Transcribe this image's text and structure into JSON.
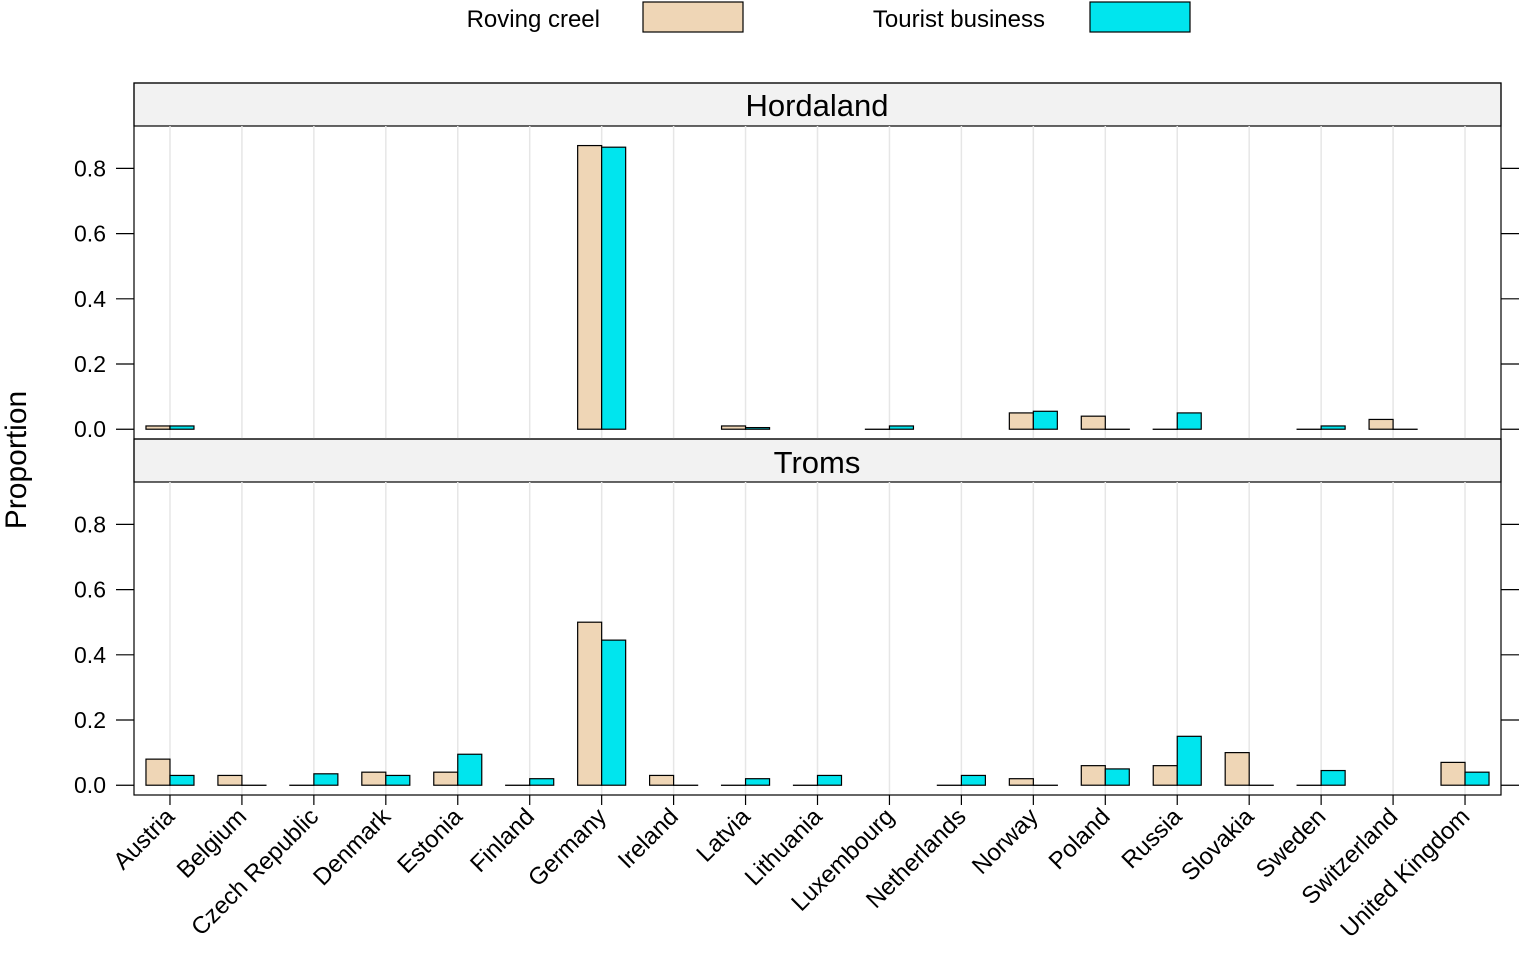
{
  "chart_data": {
    "type": "bar",
    "ylabel": "Proportion",
    "legend_position": "top",
    "grid": true,
    "ylim": [
      -0.03,
      0.93
    ],
    "yticks": [
      0.0,
      0.2,
      0.4,
      0.6,
      0.8
    ],
    "ytick_labels": [
      "0.0",
      "0.2",
      "0.4",
      "0.6",
      "0.8"
    ],
    "categories": [
      "Austria",
      "Belgium",
      "Czech Republic",
      "Denmark",
      "Estonia",
      "Finland",
      "Germany",
      "Ireland",
      "Latvia",
      "Lithuania",
      "Luxembourg",
      "Netherlands",
      "Norway",
      "Poland",
      "Russia",
      "Slovakia",
      "Sweden",
      "Switzerland",
      "United Kingdom"
    ],
    "series": [
      {
        "name": "Roving creel",
        "color": "#efd6b6"
      },
      {
        "name": "Tourist business",
        "color": "#00e5ee"
      }
    ],
    "panels": [
      {
        "title": "Hordaland",
        "values": [
          [
            0.01,
            null,
            null,
            null,
            null,
            null,
            0.87,
            null,
            0.01,
            null,
            0.0,
            null,
            0.05,
            0.04,
            0.0,
            null,
            0.0,
            0.03,
            null
          ],
          [
            0.01,
            null,
            null,
            null,
            null,
            null,
            0.865,
            null,
            0.005,
            null,
            0.01,
            null,
            0.055,
            0.0,
            0.05,
            null,
            0.01,
            0.0,
            null
          ]
        ]
      },
      {
        "title": "Troms",
        "values": [
          [
            0.08,
            0.03,
            0.0,
            0.04,
            0.04,
            0.0,
            0.5,
            0.03,
            0.0,
            0.0,
            null,
            0.0,
            0.02,
            0.06,
            0.06,
            0.1,
            0.0,
            null,
            0.07
          ],
          [
            0.03,
            0.0,
            0.035,
            0.03,
            0.095,
            0.02,
            0.445,
            0.0,
            0.02,
            0.03,
            null,
            0.03,
            0.0,
            0.05,
            0.15,
            0.0,
            0.045,
            null,
            0.04
          ]
        ]
      }
    ]
  }
}
